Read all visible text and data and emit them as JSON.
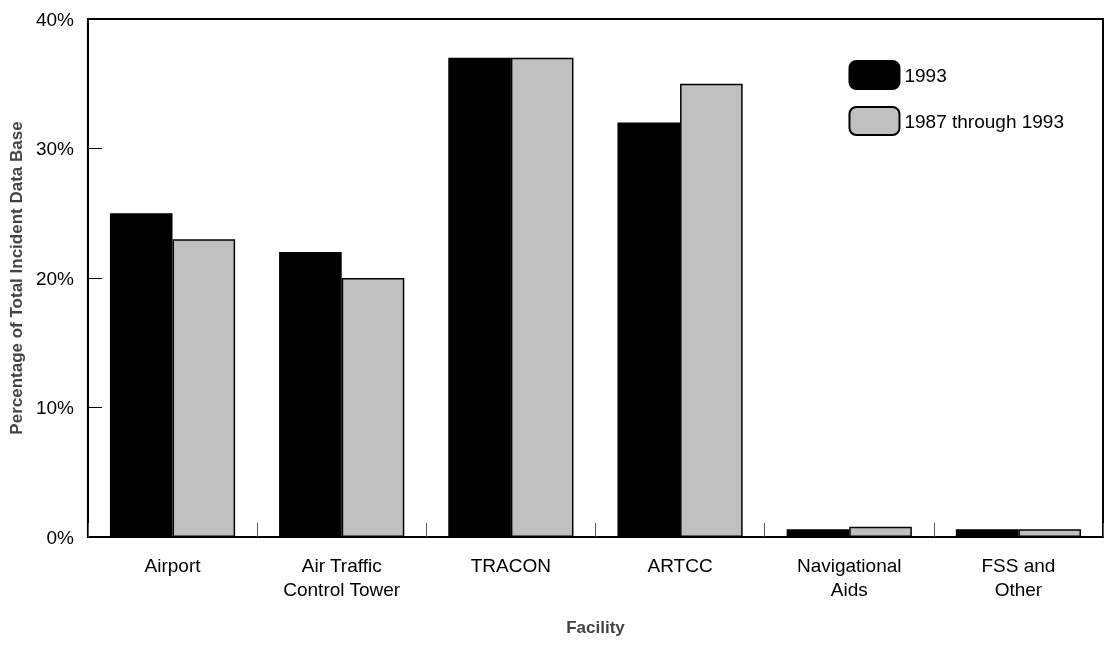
{
  "chart_data": {
    "type": "bar",
    "xlabel": "Facility",
    "ylabel": "Percentage of Total Incident Data Base",
    "categories": [
      "Airport",
      "Air Traffic\nControl Tower",
      "TRACON",
      "ARTCC",
      "Navigational\nAids",
      "FSS and\nOther"
    ],
    "series": [
      {
        "name": "1993",
        "color": "#000000",
        "values": [
          25,
          22,
          37,
          32,
          0.6,
          0.6
        ]
      },
      {
        "name": "1987 through 1993",
        "color": "#c0c0c0",
        "values": [
          23,
          20,
          37,
          35,
          0.8,
          0.6
        ]
      }
    ],
    "ylim": [
      0,
      40
    ],
    "yticks": [
      {
        "value": 0,
        "label": "0%"
      },
      {
        "value": 10,
        "label": "10%"
      },
      {
        "value": 20,
        "label": "20%"
      },
      {
        "value": 30,
        "label": "30%"
      },
      {
        "value": 40,
        "label": "40%"
      }
    ],
    "grid": false,
    "legend": "top right"
  }
}
